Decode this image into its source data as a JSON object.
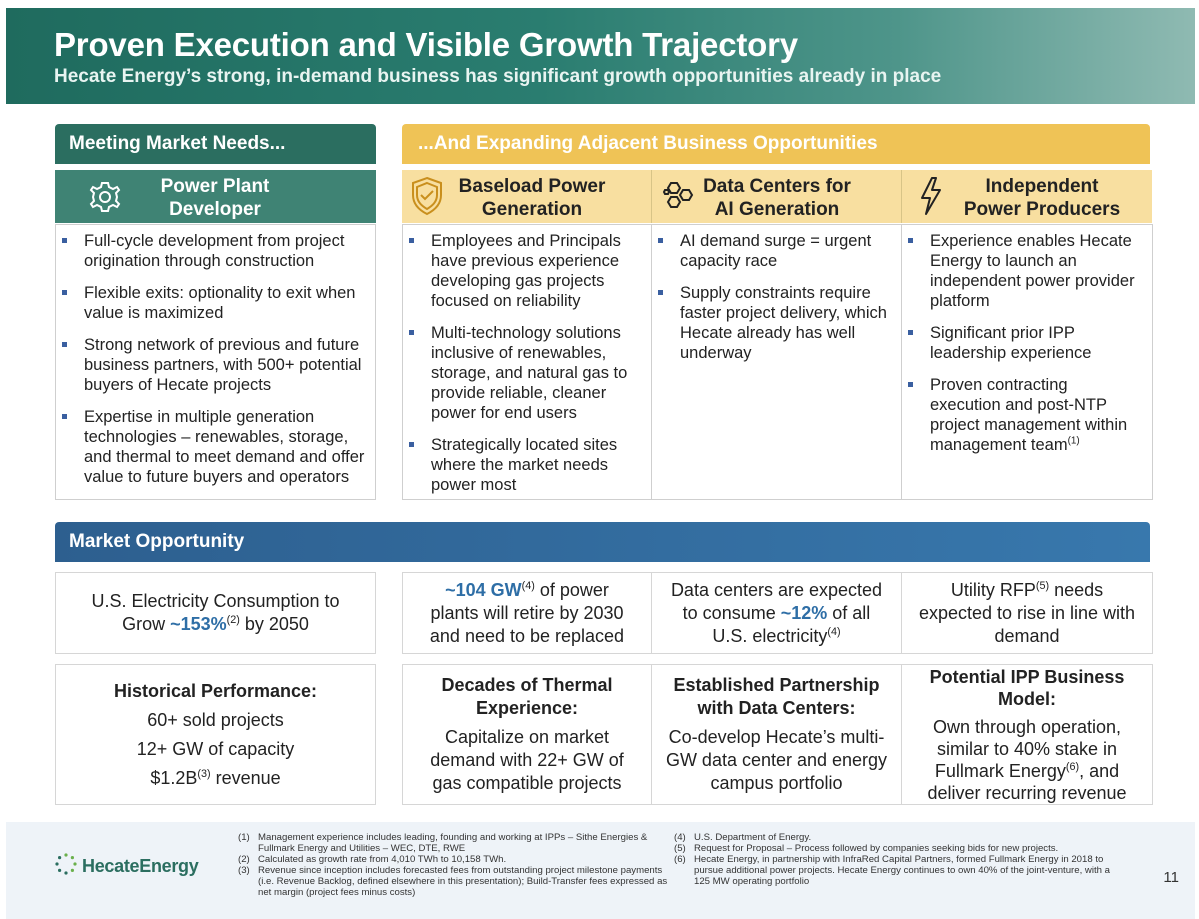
{
  "header": {
    "title": "Proven Execution and Visible Growth Trajectory",
    "subtitle": "Hecate Energy’s strong, in-demand business has significant growth opportunities already in place"
  },
  "left_section": {
    "header": "Meeting Market Needs...",
    "icon": "gear-icon",
    "sub_line1": "Power Plant",
    "sub_line2": "Developer",
    "bullets": [
      "Full-cycle development from project origination through construction",
      "Flexible exits: optionality to exit when value is maximized",
      "Strong network of previous and future business partners, with 500+ potential buyers of Hecate projects",
      "Expertise in multiple generation technologies – renewables, storage, and thermal to meet demand and offer value to future buyers and operators"
    ]
  },
  "right_section": {
    "header": "...And Expanding Adjacent Business Opportunities",
    "columns": [
      {
        "icon": "shield-check-icon",
        "title_line1": "Baseload Power",
        "title_line2": "Generation",
        "bullets": [
          "Employees and Principals have previous experience developing gas projects focused on reliability",
          "Multi-technology solutions inclusive of renewables, storage, and natural gas to provide reliable, cleaner power for end users",
          "Strategically located sites where the market needs power most"
        ]
      },
      {
        "icon": "hexagon-network-icon",
        "title_line1": "Data Centers for",
        "title_line2": "AI Generation",
        "bullets": [
          "AI demand surge = urgent capacity race",
          "Supply constraints require faster project delivery, which Hecate already has well underway"
        ]
      },
      {
        "icon": "lightning-bolt-icon",
        "title_line1": "Independent",
        "title_line2": "Power Producers",
        "bullets": [
          "Experience enables Hecate Energy to launch an independent power provider platform",
          "Significant prior IPP leadership experience",
          "Proven contracting execution and post-NTP project management within management team",
          "(1)"
        ]
      }
    ]
  },
  "market": {
    "header": "Market Opportunity",
    "row1": {
      "c1": {
        "a": "U.S. Electricity Consumption to",
        "b": "Grow ",
        "hl": "~153%",
        "sup": "(2)",
        "c": " by 2050"
      },
      "c2": {
        "hl": "~104 GW",
        "sup": "(4)",
        "a": " of power",
        "b": "plants will retire by 2030",
        "c": "and need to be replaced"
      },
      "c3": {
        "a": "Data centers are expected",
        "b": "to consume ",
        "hl": "~12%",
        "b2": " of all",
        "c": "U.S. electricity",
        "sup": "(4)"
      },
      "c4": {
        "a": "Utility RFP",
        "sup": "(5)",
        "a2": " needs",
        "b": "expected to rise in line with",
        "c": "demand"
      }
    },
    "row2": {
      "c1": {
        "title": "Historical Performance:",
        "l1": "60+ sold projects",
        "l2": "12+ GW of capacity",
        "l3a": "$1.2B",
        "sup": "(3)",
        "l3b": " revenue"
      },
      "c2": {
        "t1": "Decades of Thermal",
        "t2": "Experience:",
        "l1": "Capitalize on market",
        "l2": "demand with 22+ GW of",
        "l3": "gas compatible projects"
      },
      "c3": {
        "t1": "Established Partnership",
        "t2": "with Data Centers:",
        "l1": "Co-develop Hecate’s multi-",
        "l2": "GW data center and energy",
        "l3": "campus portfolio"
      },
      "c4": {
        "t1": "Potential IPP Business",
        "t2": "Model:",
        "l1": "Own through operation,",
        "l2": "similar to 40% stake in",
        "l3a": "Fullmark Energy",
        "sup": "(6)",
        "l3b": ", and",
        "l4": "deliver recurring revenue"
      }
    }
  },
  "footer": {
    "logo_text": "HecateEnergy",
    "page_number": "11",
    "notes_left": [
      {
        "num": "(1)",
        "text": "Management experience includes leading, founding and working at IPPs – Sithe Energies & Fullmark Energy and Utilities – WEC, DTE, RWE"
      },
      {
        "num": "(2)",
        "text": "Calculated as growth rate from 4,010 TWh to 10,158 TWh."
      },
      {
        "num": "(3)",
        "text": "Revenue since inception includes forecasted fees from outstanding project milestone payments (i.e. Revenue Backlog, defined elsewhere in this presentation); Build-Transfer fees expressed as net margin (project fees minus costs)"
      }
    ],
    "notes_right": [
      {
        "num": "(4)",
        "text": "U.S. Department of Energy."
      },
      {
        "num": "(5)",
        "text": "Request for Proposal – Process followed by companies seeking bids for new projects."
      },
      {
        "num": "(6)",
        "text": "Hecate Energy, in partnership with InfraRed Capital Partners, formed Fullmark Energy in 2018 to pursue additional power projects. Hecate Energy continues to own 40% of the joint-venture, with a 125 MW operating portfolio"
      }
    ]
  }
}
